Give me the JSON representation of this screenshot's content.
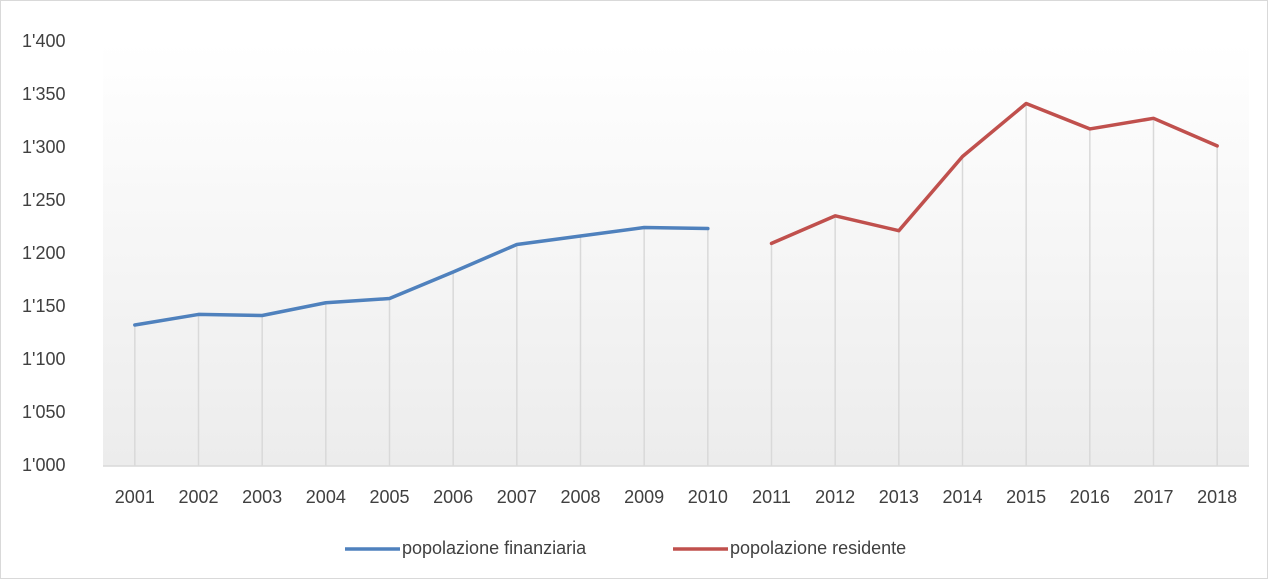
{
  "chart_data": {
    "type": "line",
    "categories": [
      "2001",
      "2002",
      "2003",
      "2004",
      "2005",
      "2006",
      "2007",
      "2008",
      "2009",
      "2010",
      "2011",
      "2012",
      "2013",
      "2014",
      "2015",
      "2016",
      "2017",
      "2018"
    ],
    "series": [
      {
        "name": "popolazione finanziaria",
        "color": "#4f81bd",
        "values": [
          1133,
          1143,
          1142,
          1154,
          1158,
          1183,
          1209,
          1217,
          1225,
          1224,
          null,
          null,
          null,
          null,
          null,
          null,
          null,
          null
        ]
      },
      {
        "name": "popolazione residente",
        "color": "#c0504d",
        "values": [
          null,
          null,
          null,
          null,
          null,
          null,
          null,
          null,
          null,
          null,
          1210,
          1236,
          1222,
          1292,
          1342,
          1318,
          1328,
          1302
        ]
      }
    ],
    "ylim": [
      1000,
      1400
    ],
    "yticks": [
      {
        "value": 1000,
        "label": "1'000"
      },
      {
        "value": 1050,
        "label": "1'050"
      },
      {
        "value": 1100,
        "label": "1'100"
      },
      {
        "value": 1150,
        "label": "1'150"
      },
      {
        "value": 1200,
        "label": "1'200"
      },
      {
        "value": 1250,
        "label": "1'250"
      },
      {
        "value": 1300,
        "label": "1'300"
      },
      {
        "value": 1350,
        "label": "1'350"
      },
      {
        "value": 1400,
        "label": "1'400"
      }
    ],
    "drop_lines": true,
    "grid": false,
    "legend": "bottom"
  }
}
